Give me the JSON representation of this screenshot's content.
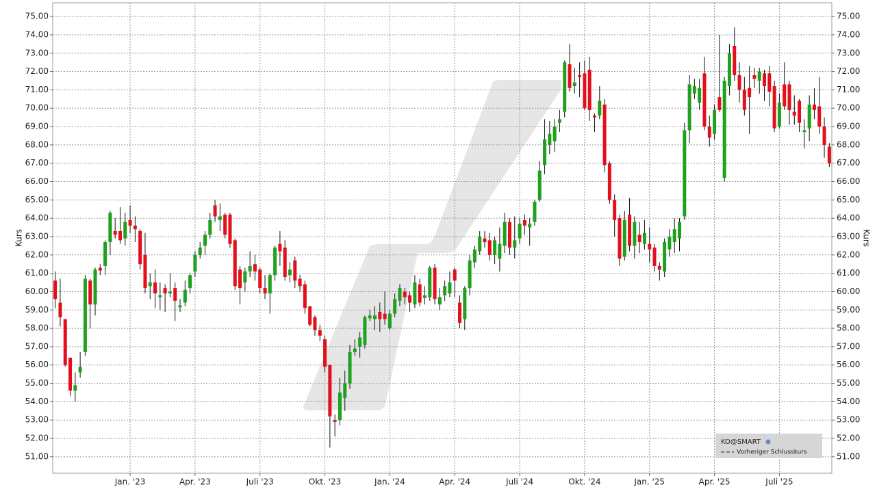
{
  "chart_data": {
    "type": "candlestick",
    "y_label": "Kurs",
    "legend": {
      "title": "KO@SMART",
      "entries": [
        "Vorheriger Schlusskurs"
      ],
      "position": "lower right"
    },
    "up_color": "#1fa01f",
    "down_color": "#e3101c",
    "grid": true,
    "ylim": [
      50.1,
      75.75
    ],
    "yticks": [
      {
        "value": 51,
        "label": "51.00"
      },
      {
        "value": 52,
        "label": "52.00"
      },
      {
        "value": 53,
        "label": "53.00"
      },
      {
        "value": 54,
        "label": "54.00"
      },
      {
        "value": 55,
        "label": "55.00"
      },
      {
        "value": 56,
        "label": "56.00"
      },
      {
        "value": 57,
        "label": "57.00"
      },
      {
        "value": 58,
        "label": "58.00"
      },
      {
        "value": 59,
        "label": "59.00"
      },
      {
        "value": 60,
        "label": "60.00"
      },
      {
        "value": 61,
        "label": "61.00"
      },
      {
        "value": 62,
        "label": "62.00"
      },
      {
        "value": 63,
        "label": "63.00"
      },
      {
        "value": 64,
        "label": "64.00"
      },
      {
        "value": 65,
        "label": "65.00"
      },
      {
        "value": 66,
        "label": "66.00"
      },
      {
        "value": 67,
        "label": "67.00"
      },
      {
        "value": 68,
        "label": "68.00"
      },
      {
        "value": 69,
        "label": "69.00"
      },
      {
        "value": 70,
        "label": "70.00"
      },
      {
        "value": 71,
        "label": "71.00"
      },
      {
        "value": 72,
        "label": "72.00"
      },
      {
        "value": 73,
        "label": "73.00"
      },
      {
        "value": 74,
        "label": "74.00"
      },
      {
        "value": 75,
        "label": "75.00"
      }
    ],
    "categories": [
      null,
      null,
      null,
      null,
      null,
      null,
      null,
      null,
      null,
      null,
      null,
      null,
      null,
      null,
      null,
      "Jan. '23",
      null,
      null,
      null,
      null,
      null,
      null,
      null,
      null,
      null,
      null,
      null,
      null,
      "Apr. '23",
      null,
      null,
      null,
      null,
      null,
      null,
      null,
      null,
      null,
      null,
      null,
      null,
      "Juli '23",
      null,
      null,
      null,
      null,
      null,
      null,
      null,
      null,
      null,
      null,
      null,
      null,
      "Okt. '23",
      null,
      null,
      null,
      null,
      null,
      null,
      null,
      null,
      null,
      null,
      null,
      null,
      "Jan. '24",
      null,
      null,
      null,
      null,
      null,
      null,
      null,
      null,
      null,
      null,
      null,
      null,
      "Apr. '24",
      null,
      null,
      null,
      null,
      null,
      null,
      null,
      null,
      null,
      null,
      null,
      null,
      "Juli '24",
      null,
      null,
      null,
      null,
      null,
      null,
      null,
      null,
      null,
      null,
      null,
      null,
      "Okt. '24",
      null,
      null,
      null,
      null,
      null,
      null,
      null,
      null,
      null,
      null,
      null,
      null,
      "Jan. '25",
      null,
      null,
      null,
      null,
      null,
      null,
      null,
      null,
      null,
      null,
      null,
      null,
      "Apr. '25",
      null,
      null,
      null,
      null,
      null,
      null,
      null,
      null,
      null,
      null,
      null,
      null,
      "Juli '25",
      null,
      null,
      null,
      null,
      null,
      null,
      null,
      null,
      null,
      null
    ],
    "open": [
      60.6,
      59.4,
      58.5,
      56.4,
      54.6,
      55.6,
      56.7,
      60.6,
      59.3,
      61.3,
      61.4,
      62.7,
      63.3,
      63.3,
      62.9,
      63.9,
      63.6,
      63.3,
      62.0,
      60.3,
      60.5,
      59.7,
      60.2,
      59.9,
      60.2,
      59.15,
      59.4,
      60.2,
      61.1,
      62.0,
      62.5,
      63.1,
      64.7,
      63.9,
      64.2,
      64.2,
      62.8,
      61.2,
      60.5,
      61.1,
      61.5,
      61.2,
      60.2,
      59.9,
      60.9,
      62.6,
      62.4,
      60.9,
      61.7,
      60.7,
      60.4,
      59.2,
      58.6,
      57.9,
      57.4,
      56.0,
      53.0,
      53.0,
      54.2,
      55.0,
      56.7,
      57.0,
      57.1,
      58.55,
      58.5,
      58.9,
      58.8,
      58.0,
      58.8,
      59.5,
      60.0,
      59.8,
      59.3,
      60.4,
      59.65,
      59.7,
      61.3,
      59.3,
      59.8,
      59.9,
      61.2,
      59.4,
      58.5,
      60.2,
      61.6,
      62.2,
      62.9,
      62.8,
      62.0,
      61.8,
      62.5,
      63.8,
      62.4,
      62.9,
      63.9,
      63.5,
      63.8,
      65.0,
      66.9,
      68.0,
      68.2,
      69.2,
      69.8,
      72.4,
      71.2,
      71.8,
      71.9,
      72.1,
      69.6,
      69.6,
      70.2,
      67.0,
      65.0,
      64.0,
      61.9,
      64.2,
      62.5,
      63.1,
      62.6,
      62.6,
      62.4,
      61.4,
      61.1,
      62.3,
      62.7,
      62.9,
      64.1,
      68.8,
      70.8,
      70.3,
      71.9,
      69.0,
      68.6,
      70.6,
      66.2,
      71.2,
      73.4,
      71.8,
      71.0,
      71.1,
      71.8,
      71.5,
      71.9,
      71.9,
      71.2,
      69.0,
      71.3,
      71.3,
      69.8,
      70.4,
      68.7,
      68.9,
      70.2,
      70.1,
      69.0,
      67.9
    ],
    "high": [
      61.1,
      60.7,
      58.5,
      56.4,
      55.6,
      56.7,
      60.9,
      60.7,
      61.3,
      61.5,
      62.8,
      64.4,
      64.0,
      64.6,
      64.3,
      64.7,
      64.1,
      63.4,
      63.2,
      61.0,
      61.2,
      60.5,
      60.4,
      61.0,
      60.5,
      59.6,
      60.6,
      61.0,
      62.2,
      62.7,
      63.3,
      64.3,
      65.0,
      64.8,
      64.3,
      64.3,
      62.9,
      61.4,
      61.3,
      62.2,
      62.0,
      61.3,
      60.9,
      61.0,
      62.5,
      63.3,
      62.8,
      61.6,
      61.9,
      60.9,
      60.6,
      59.2,
      58.7,
      58.2,
      57.6,
      56.0,
      53.3,
      55.3,
      55.7,
      57.1,
      57.4,
      57.8,
      58.7,
      59.0,
      59.2,
      59.4,
      60.0,
      59.0,
      59.9,
      60.4,
      60.2,
      60.0,
      60.9,
      60.7,
      60.3,
      61.4,
      61.5,
      60.2,
      60.6,
      61.1,
      61.3,
      59.8,
      60.3,
      62.0,
      62.5,
      63.3,
      63.3,
      63.2,
      63.0,
      63.5,
      64.3,
      64.0,
      64.1,
      64.0,
      64.2,
      64.0,
      65.0,
      67.1,
      69.4,
      69.3,
      69.4,
      69.9,
      72.6,
      73.5,
      72.2,
      72.5,
      72.6,
      72.8,
      69.7,
      71.2,
      70.5,
      67.1,
      65.3,
      64.2,
      64.4,
      65.1,
      64.1,
      63.8,
      63.9,
      63.5,
      62.6,
      61.6,
      62.9,
      63.4,
      64.0,
      64.0,
      69.2,
      71.8,
      71.6,
      71.6,
      72.8,
      69.6,
      70.2,
      74.0,
      71.7,
      73.5,
      74.4,
      72.5,
      71.7,
      72.3,
      72.2,
      72.2,
      72.1,
      72.3,
      71.5,
      70.8,
      72.5,
      71.5,
      70.7,
      70.5,
      69.4,
      70.7,
      71.1,
      71.7,
      69.5,
      68.1
    ],
    "low": [
      59.1,
      58.1,
      55.9,
      54.3,
      54.0,
      55.3,
      56.5,
      58.0,
      58.7,
      60.9,
      60.9,
      62.0,
      62.9,
      62.6,
      62.5,
      63.2,
      62.7,
      61.2,
      59.9,
      59.6,
      59.1,
      59.0,
      58.9,
      59.7,
      58.4,
      58.9,
      59.2,
      59.9,
      60.8,
      61.8,
      62.0,
      62.9,
      63.8,
      63.3,
      62.9,
      62.4,
      60.1,
      59.3,
      60.0,
      60.8,
      60.6,
      59.9,
      59.6,
      58.8,
      60.6,
      61.4,
      60.6,
      60.5,
      60.2,
      60.0,
      58.8,
      58.1,
      57.6,
      57.3,
      55.6,
      51.5,
      52.1,
      52.7,
      53.5,
      54.7,
      56.5,
      56.4,
      56.9,
      58.4,
      57.9,
      57.8,
      58.2,
      57.9,
      58.6,
      59.2,
      59.3,
      58.9,
      59.1,
      59.2,
      59.3,
      59.5,
      59.3,
      59.0,
      59.5,
      59.7,
      59.7,
      58.0,
      57.9,
      59.8,
      61.3,
      62.0,
      62.4,
      61.7,
      61.5,
      61.1,
      62.1,
      62.0,
      61.8,
      62.6,
      63.1,
      62.5,
      63.6,
      64.9,
      66.4,
      67.5,
      67.6,
      68.7,
      69.5,
      70.9,
      70.8,
      70.6,
      69.9,
      69.3,
      68.7,
      69.4,
      66.5,
      64.8,
      63.0,
      61.4,
      61.7,
      62.2,
      61.8,
      62.1,
      62.3,
      61.6,
      61.1,
      60.6,
      60.8,
      61.9,
      62.1,
      62.2,
      63.9,
      68.1,
      70.5,
      69.9,
      68.8,
      67.9,
      68.3,
      69.8,
      66.0,
      70.7,
      71.5,
      70.3,
      69.6,
      68.6,
      71.1,
      70.8,
      70.4,
      70.1,
      68.7,
      68.9,
      69.9,
      69.1,
      69.1,
      68.7,
      67.8,
      68.2,
      69.4,
      68.6,
      67.3,
      66.8
    ],
    "close": [
      59.6,
      58.6,
      56.0,
      54.6,
      54.9,
      55.9,
      60.7,
      59.3,
      61.2,
      61.15,
      62.7,
      64.3,
      63.1,
      62.8,
      63.8,
      63.6,
      63.4,
      61.5,
      60.2,
      60.5,
      59.9,
      59.8,
      59.9,
      60.0,
      59.5,
      59.25,
      60.1,
      60.9,
      62.0,
      62.4,
      63.1,
      63.9,
      64.1,
      64.1,
      63.1,
      62.6,
      60.3,
      60.2,
      61.1,
      61.4,
      61.1,
      60.2,
      59.9,
      60.9,
      62.4,
      62.2,
      60.8,
      61.2,
      60.6,
      60.3,
      59.1,
      58.2,
      57.9,
      57.6,
      55.9,
      53.2,
      52.9,
      54.5,
      55.0,
      56.7,
      56.9,
      57.5,
      58.6,
      58.7,
      58.7,
      58.5,
      58.5,
      58.8,
      59.6,
      60.2,
      59.7,
      59.4,
      60.5,
      59.4,
      59.8,
      61.3,
      59.6,
      59.7,
      60.3,
      60.5,
      60.6,
      58.3,
      60.2,
      61.7,
      62.3,
      63.0,
      62.7,
      62.0,
      62.8,
      62.6,
      63.8,
      62.4,
      62.8,
      63.7,
      63.6,
      63.7,
      64.9,
      66.6,
      68.3,
      68.6,
      69.0,
      69.4,
      72.5,
      71.1,
      71.4,
      71.7,
      70.0,
      69.9,
      69.5,
      70.4,
      66.9,
      65.0,
      63.9,
      61.8,
      63.9,
      62.5,
      63.8,
      62.7,
      63.2,
      62.3,
      61.4,
      61.2,
      62.7,
      63.0,
      63.4,
      63.8,
      68.8,
      71.3,
      71.2,
      71.1,
      69.0,
      68.4,
      69.9,
      69.9,
      71.5,
      73.0,
      71.8,
      71.0,
      69.9,
      70.6,
      71.6,
      72.0,
      71.2,
      70.9,
      68.9,
      70.3,
      70.1,
      69.9,
      69.6,
      69.2,
      68.8,
      70.2,
      69.9,
      69.0,
      68.0,
      67.0
    ]
  }
}
